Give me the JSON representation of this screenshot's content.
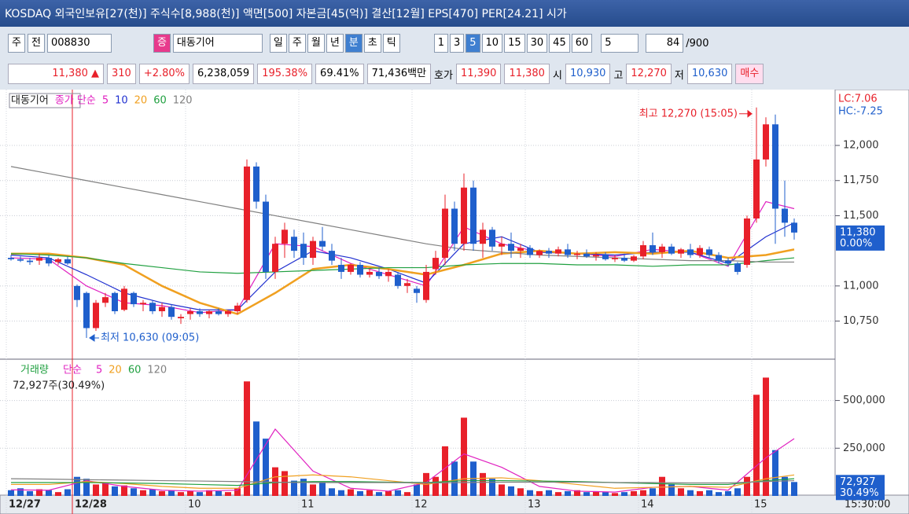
{
  "header": {
    "title": "KOSDAQ 외국인보유[27(천)] 주식수[8,988(천)] 액면[500] 자본금[45(억)] 결산[12월] EPS[470] PER[24.21] 시가"
  },
  "toolbar": {
    "market": "주",
    "mode": "전",
    "code": "008830",
    "badge": "증",
    "name": "대동기어",
    "periods": [
      "일",
      "주",
      "월",
      "년",
      "분",
      "초",
      "틱"
    ],
    "minutes": [
      "1",
      "3",
      "5",
      "10",
      "15",
      "30",
      "45",
      "60"
    ],
    "unit": "5",
    "count": "84",
    "max": "/900"
  },
  "quote": {
    "price": "11,380 ▲",
    "change": "310",
    "rate": "+2.80%",
    "volume": "6,238,059",
    "vol_ratio": "195.38%",
    "turnover": "69.41%",
    "amount": "71,436백만",
    "bid_label": "호가",
    "ask": "11,390",
    "bid": "11,380",
    "open_label": "시",
    "open": "10,930",
    "high_label": "고",
    "high": "12,270",
    "low_label": "저",
    "low": "10,630",
    "buy": "매수"
  },
  "chart_data": [
    {
      "type": "candlestick",
      "name": "대동기어",
      "legend": "종가 단순",
      "up_color": "#e8202a",
      "down_color": "#1f5fcc",
      "categories": [
        "12/27",
        null,
        null,
        null,
        null,
        null,
        null,
        "12/28",
        null,
        null,
        null,
        null,
        null,
        null,
        null,
        null,
        null,
        null,
        null,
        "10",
        null,
        null,
        null,
        null,
        null,
        null,
        null,
        null,
        null,
        null,
        null,
        "11",
        null,
        null,
        null,
        null,
        null,
        null,
        null,
        null,
        null,
        null,
        null,
        "12",
        null,
        null,
        null,
        null,
        null,
        null,
        null,
        null,
        null,
        null,
        null,
        "13",
        null,
        null,
        null,
        null,
        null,
        null,
        null,
        null,
        null,
        null,
        null,
        "14",
        null,
        null,
        null,
        null,
        null,
        null,
        null,
        null,
        null,
        null,
        null,
        "15",
        null,
        null,
        null,
        null
      ],
      "open": [
        11200,
        11190,
        11180,
        11180,
        11200,
        11170,
        11190,
        11000,
        10950,
        10700,
        10880,
        10950,
        10830,
        10950,
        10870,
        10880,
        10820,
        10850,
        10770,
        10800,
        10820,
        10800,
        10820,
        10800,
        10820,
        10900,
        11850,
        11600,
        11100,
        11300,
        11350,
        11300,
        11200,
        11320,
        11250,
        11150,
        11100,
        11150,
        11080,
        11100,
        11070,
        11080,
        11000,
        10980,
        10900,
        11120,
        11200,
        11550,
        11300,
        11700,
        11300,
        11400,
        11280,
        11300,
        11250,
        11270,
        11220,
        11250,
        11230,
        11260,
        11220,
        11230,
        11210,
        11220,
        11190,
        11200,
        11180,
        11210,
        11290,
        11240,
        11280,
        11230,
        11260,
        11220,
        11260,
        11220,
        11180,
        11160,
        11150,
        11480,
        11900,
        12150,
        11550,
        11450
      ],
      "high": [
        11220,
        11210,
        11200,
        11230,
        11220,
        11200,
        11210,
        11010,
        10960,
        10900,
        10950,
        10960,
        11000,
        10960,
        10900,
        10900,
        10880,
        10870,
        10800,
        10840,
        10840,
        10830,
        10840,
        10830,
        10880,
        11900,
        11880,
        11650,
        11350,
        11450,
        11400,
        11380,
        11350,
        11420,
        11300,
        11200,
        11160,
        11170,
        11120,
        11130,
        11120,
        11100,
        11050,
        11000,
        11150,
        11250,
        11650,
        11600,
        11800,
        11750,
        11450,
        11420,
        11350,
        11380,
        11300,
        11290,
        11260,
        11270,
        11280,
        11300,
        11250,
        11260,
        11240,
        11240,
        11220,
        11230,
        11220,
        11320,
        11380,
        11300,
        11300,
        11270,
        11300,
        11290,
        11280,
        11240,
        11200,
        11170,
        11500,
        12270,
        12200,
        12220,
        11750,
        11480
      ],
      "low": [
        11180,
        11170,
        11150,
        11150,
        11140,
        11150,
        11150,
        10850,
        10630,
        10680,
        10850,
        10800,
        10820,
        10850,
        10820,
        10800,
        10780,
        10760,
        10730,
        10760,
        10780,
        10770,
        10790,
        10780,
        10800,
        10880,
        11550,
        11050,
        11050,
        11200,
        11200,
        11150,
        11150,
        11250,
        11150,
        11050,
        11080,
        11060,
        11060,
        11050,
        11030,
        10980,
        10950,
        10880,
        10880,
        11080,
        11150,
        11250,
        11250,
        11250,
        11200,
        11250,
        11220,
        11200,
        11200,
        11200,
        11200,
        11200,
        11210,
        11200,
        11190,
        11200,
        11180,
        11180,
        11170,
        11170,
        11170,
        11190,
        11220,
        11200,
        11220,
        11200,
        11200,
        11200,
        11200,
        11160,
        11140,
        11080,
        11130,
        11450,
        11850,
        11300,
        11350,
        11330
      ],
      "close": [
        11190,
        11180,
        11170,
        11200,
        11160,
        11190,
        11160,
        10900,
        10700,
        10880,
        10920,
        10820,
        10980,
        10870,
        10880,
        10820,
        10850,
        10780,
        10780,
        10820,
        10800,
        10820,
        10800,
        10820,
        10860,
        11850,
        11600,
        11100,
        11300,
        11400,
        11250,
        11200,
        11320,
        11280,
        11180,
        11100,
        11150,
        11080,
        11100,
        11070,
        11100,
        11000,
        11020,
        10950,
        11100,
        11200,
        11550,
        11300,
        11700,
        11300,
        11400,
        11280,
        11300,
        11250,
        11270,
        11220,
        11250,
        11230,
        11260,
        11220,
        11230,
        11210,
        11220,
        11190,
        11200,
        11180,
        11210,
        11290,
        11240,
        11280,
        11230,
        11260,
        11220,
        11270,
        11220,
        11180,
        11160,
        11100,
        11480,
        11900,
        12150,
        11550,
        11450,
        11380
      ],
      "lines": [
        {
          "name": "5",
          "color": "#e020c0",
          "x": [
            0,
            4,
            8,
            12,
            16,
            20,
            24,
            28,
            32,
            36,
            40,
            44,
            48,
            52,
            56,
            60,
            64,
            68,
            72,
            76,
            80,
            83
          ],
          "values": [
            11200,
            11190,
            11000,
            10880,
            10860,
            10810,
            10830,
            11300,
            11280,
            11160,
            11080,
            11000,
            11420,
            11300,
            11240,
            11230,
            11210,
            11260,
            11240,
            11140,
            11600,
            11550
          ]
        },
        {
          "name": "10",
          "color": "#2030d0",
          "x": [
            0,
            4,
            8,
            12,
            16,
            20,
            24,
            28,
            32,
            36,
            40,
            44,
            48,
            52,
            56,
            60,
            64,
            68,
            72,
            76,
            80,
            83
          ],
          "values": [
            11220,
            11200,
            11080,
            10950,
            10880,
            10830,
            10830,
            11100,
            11250,
            11200,
            11120,
            11020,
            11300,
            11350,
            11240,
            11230,
            11220,
            11240,
            11240,
            11160,
            11350,
            11450
          ]
        },
        {
          "name": "20",
          "color": "#f0a020",
          "x": [
            0,
            4,
            8,
            12,
            16,
            20,
            24,
            28,
            32,
            36,
            40,
            44,
            48,
            52,
            56,
            60,
            64,
            68,
            72,
            76,
            80,
            83
          ],
          "values": [
            11230,
            11230,
            11200,
            11150,
            11000,
            10880,
            10800,
            10950,
            11120,
            11150,
            11120,
            11080,
            11150,
            11230,
            11250,
            11230,
            11240,
            11230,
            11250,
            11200,
            11220,
            11260
          ]
        },
        {
          "name": "60",
          "color": "#20a040",
          "x": [
            0,
            4,
            8,
            12,
            16,
            20,
            24,
            28,
            32,
            36,
            40,
            44,
            48,
            52,
            56,
            60,
            64,
            68,
            72,
            76,
            80,
            83
          ],
          "values": [
            11230,
            11220,
            11200,
            11160,
            11130,
            11100,
            11090,
            11100,
            11110,
            11120,
            11130,
            11130,
            11150,
            11160,
            11160,
            11150,
            11150,
            11140,
            11150,
            11150,
            11180,
            11200
          ]
        },
        {
          "name": "120",
          "color": "#808080",
          "x": [
            0,
            4,
            8,
            12,
            16,
            20,
            24,
            28,
            32,
            36,
            40,
            44,
            48,
            52,
            56,
            60,
            64,
            68,
            72,
            76,
            80,
            83
          ],
          "values": [
            11850,
            11800,
            11750,
            11700,
            11650,
            11600,
            11550,
            11500,
            11450,
            11400,
            11350,
            11300,
            11260,
            11240,
            11220,
            11210,
            11200,
            11190,
            11180,
            11180,
            11170,
            11170
          ]
        }
      ],
      "ylim": [
        10490,
        12375
      ],
      "yticks": [
        {
          "value": 10750,
          "label": "10,750"
        },
        {
          "value": 11000,
          "label": "11,000"
        },
        {
          "value": 11500,
          "label": "11,500"
        },
        {
          "value": 11750,
          "label": "11,750"
        },
        {
          "value": 12000,
          "label": "12,000"
        }
      ],
      "last_label": "11,380",
      "last_rate": "0.00%",
      "lc": "LC:7.06",
      "hc": "HC:-7.25",
      "annotations": [
        "최고 12,270 (15:05)",
        "최저 10,630 (09:05)"
      ],
      "time_label": "15:30:00"
    },
    {
      "type": "bar",
      "title": "거래량",
      "legend": "단순",
      "info": "72,927주(30.49%)",
      "values": [
        30000,
        40000,
        25000,
        35000,
        30000,
        20000,
        35000,
        100000,
        90000,
        60000,
        70000,
        50000,
        55000,
        40000,
        30000,
        35000,
        25000,
        30000,
        20000,
        25000,
        20000,
        30000,
        25000,
        20000,
        40000,
        600000,
        390000,
        300000,
        150000,
        130000,
        80000,
        90000,
        60000,
        70000,
        40000,
        30000,
        35000,
        25000,
        30000,
        20000,
        25000,
        30000,
        20000,
        60000,
        120000,
        100000,
        260000,
        180000,
        410000,
        180000,
        120000,
        90000,
        60000,
        50000,
        40000,
        30000,
        25000,
        30000,
        20000,
        25000,
        30000,
        20000,
        25000,
        20000,
        15000,
        20000,
        25000,
        30000,
        40000,
        100000,
        60000,
        40000,
        30000,
        25000,
        30000,
        20000,
        25000,
        40000,
        100000,
        530000,
        620000,
        240000,
        100000,
        72927
      ],
      "lines": [
        {
          "name": "5",
          "color": "#e020c0",
          "x": [
            0,
            4,
            8,
            12,
            16,
            20,
            24,
            28,
            32,
            36,
            40,
            44,
            48,
            52,
            56,
            60,
            64,
            68,
            72,
            76,
            80,
            83
          ],
          "values": [
            32000,
            30000,
            80000,
            50000,
            30000,
            25000,
            30000,
            350000,
            130000,
            40000,
            25000,
            70000,
            220000,
            150000,
            50000,
            25000,
            20000,
            45000,
            50000,
            30000,
            200000,
            300000
          ]
        },
        {
          "name": "20",
          "color": "#f0a020",
          "x": [
            0,
            4,
            8,
            12,
            16,
            20,
            24,
            28,
            32,
            36,
            40,
            44,
            48,
            52,
            56,
            60,
            64,
            68,
            72,
            76,
            80,
            83
          ],
          "values": [
            60000,
            60000,
            75000,
            65000,
            50000,
            40000,
            40000,
            100000,
            110000,
            100000,
            80000,
            60000,
            90000,
            95000,
            80000,
            60000,
            40000,
            45000,
            50000,
            45000,
            90000,
            110000
          ]
        },
        {
          "name": "60",
          "color": "#20a040",
          "x": [
            0,
            4,
            8,
            12,
            16,
            20,
            24,
            28,
            32,
            36,
            40,
            44,
            48,
            52,
            56,
            60,
            64,
            68,
            72,
            76,
            80,
            83
          ],
          "values": [
            70000,
            70000,
            70000,
            68000,
            65000,
            60000,
            55000,
            70000,
            75000,
            75000,
            72000,
            70000,
            80000,
            80000,
            78000,
            75000,
            70000,
            65000,
            60000,
            60000,
            80000,
            90000
          ]
        },
        {
          "name": "120",
          "color": "#808080",
          "x": [
            0,
            4,
            8,
            12,
            16,
            20,
            24,
            28,
            32,
            36,
            40,
            44,
            48,
            52,
            56,
            60,
            64,
            68,
            72,
            76,
            80,
            83
          ],
          "values": [
            90000,
            88000,
            85000,
            83000,
            80000,
            78000,
            75000,
            72000,
            70000,
            70000,
            70000,
            68000,
            70000,
            72000,
            72000,
            72000,
            70000,
            70000,
            68000,
            68000,
            75000,
            80000
          ]
        }
      ],
      "ylim": [
        0,
        700000
      ],
      "yticks": [
        {
          "value": 250000,
          "label": "250,000"
        },
        {
          "value": 500000,
          "label": "500,000"
        }
      ],
      "last_label": "72,927",
      "last_rate": "30.49%"
    }
  ]
}
